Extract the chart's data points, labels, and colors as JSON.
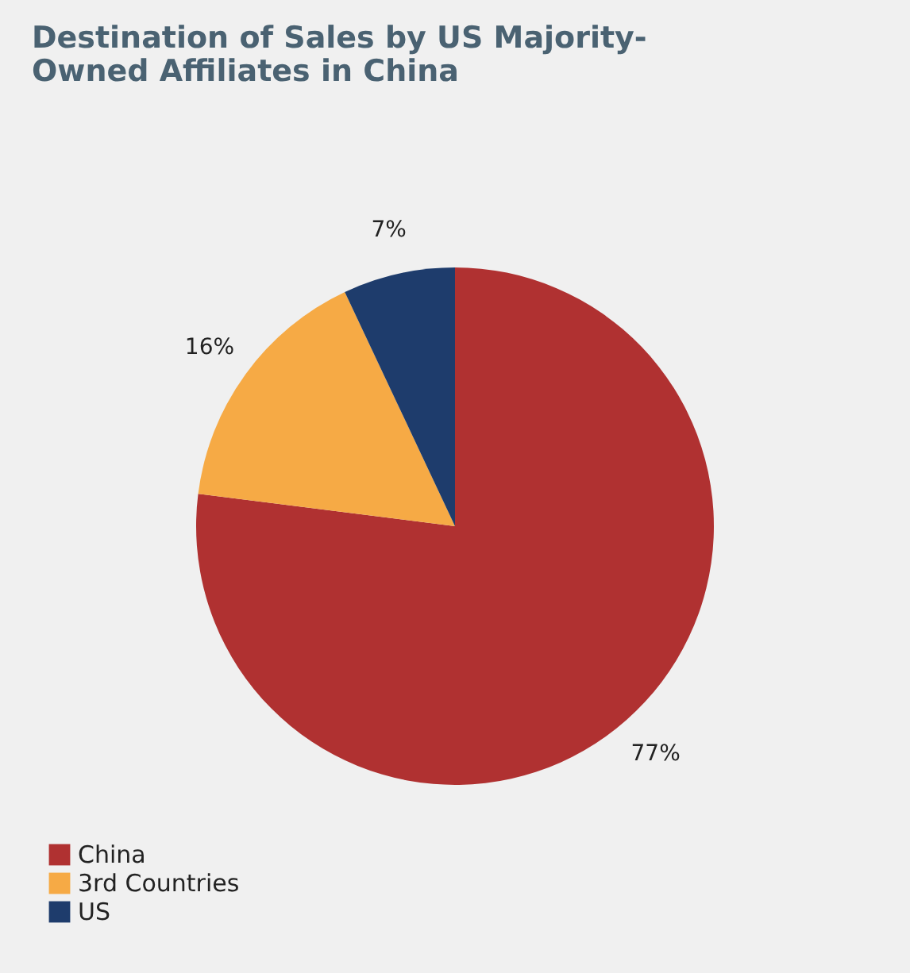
{
  "chart_data": {
    "type": "pie",
    "title": [
      "Destination of Sales by US Majority-",
      "Owned Affiliates in China"
    ],
    "categories": [
      "China",
      "3rd Countries",
      "US"
    ],
    "values": [
      77,
      16,
      7
    ],
    "colors": [
      "#b03131",
      "#f6aa45",
      "#1e3c6c"
    ],
    "value_labels": [
      "77%",
      "16%",
      "7%"
    ],
    "legend": "bottom left"
  }
}
